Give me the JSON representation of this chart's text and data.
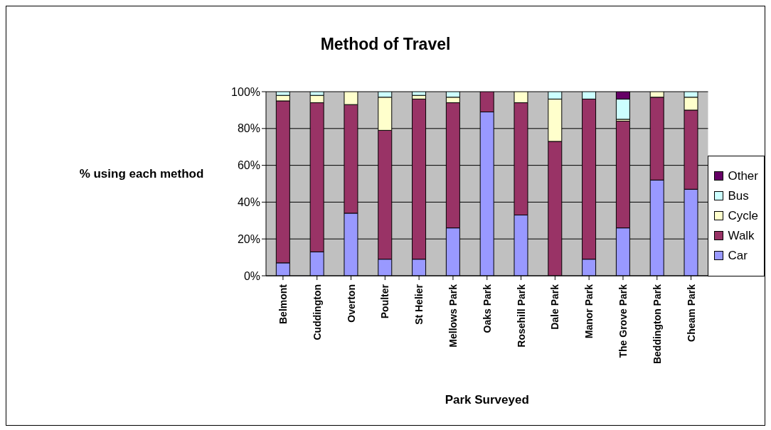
{
  "chart_data": {
    "type": "bar",
    "title": "Method of Travel",
    "xlabel": "Park Surveyed",
    "ylabel": "% using each method",
    "stacked": true,
    "grid": "y",
    "legend": "right",
    "categories": [
      "Belmont",
      "Cuddington",
      "Overton",
      "Poulter",
      "St Helier",
      "Mellows Park",
      "Oaks Park",
      "Rosehill Park",
      "Dale Park",
      "Manor Park",
      "The Grove Park",
      "Beddington Park",
      "Cheam Park"
    ],
    "ylim": [
      0,
      100
    ],
    "yticks": [
      {
        "value": 0,
        "label": "0%"
      },
      {
        "value": 20,
        "label": "20%"
      },
      {
        "value": 40,
        "label": "40%"
      },
      {
        "value": 60,
        "label": "60%"
      },
      {
        "value": 80,
        "label": "80%"
      },
      {
        "value": 100,
        "label": "100%"
      }
    ],
    "series": [
      {
        "name": "Car",
        "color": "#9999ff",
        "values": [
          7,
          13,
          34,
          9,
          9,
          26,
          89,
          33,
          0,
          9,
          26,
          52,
          47
        ]
      },
      {
        "name": "Walk",
        "color": "#993366",
        "values": [
          88,
          81,
          59,
          70,
          87,
          68,
          11,
          61,
          73,
          87,
          58,
          45,
          43
        ]
      },
      {
        "name": "Cycle",
        "color": "#ffffcc",
        "values": [
          3,
          4,
          7,
          18,
          2,
          3,
          0,
          6,
          23,
          0,
          1,
          3,
          7
        ]
      },
      {
        "name": "Bus",
        "color": "#ccffff",
        "values": [
          2,
          2,
          0,
          3,
          2,
          3,
          0,
          0,
          4,
          4,
          11,
          0,
          3
        ]
      },
      {
        "name": "Other",
        "color": "#660066",
        "values": [
          0,
          0,
          0,
          0,
          0,
          0,
          0,
          0,
          0,
          0,
          4,
          0,
          0
        ]
      }
    ]
  }
}
